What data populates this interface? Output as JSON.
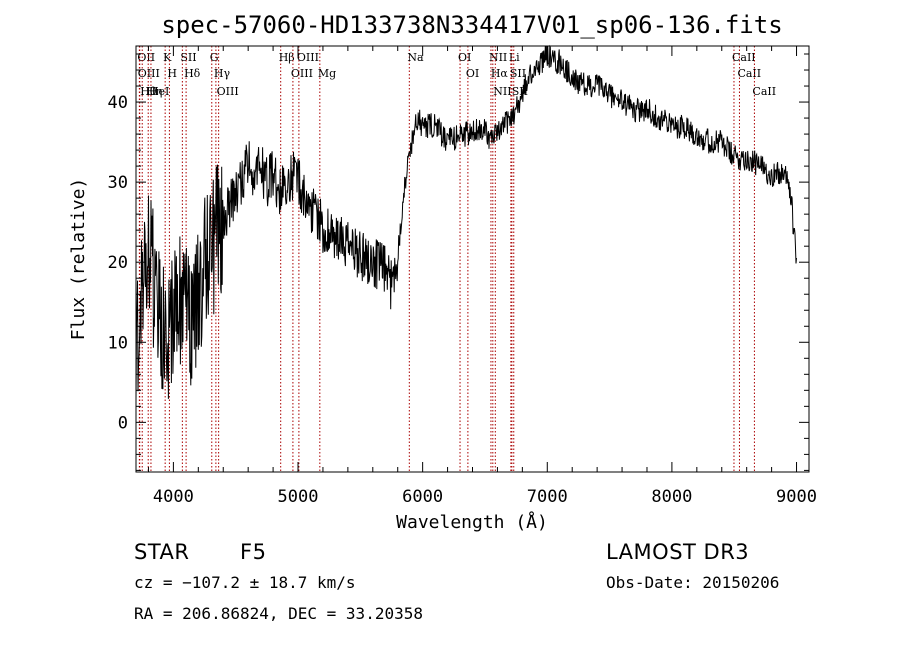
{
  "chart_data": {
    "type": "line",
    "title": "spec-57060-HD133738N334417V01_sp06-136.fits",
    "xlabel": "Wavelength (Å)",
    "ylabel": "Flux (relative)",
    "xlim": [
      3700,
      9100
    ],
    "ylim": [
      -6.2,
      47
    ],
    "xticks": [
      4000,
      5000,
      6000,
      7000,
      8000,
      9000
    ],
    "yticks": [
      0,
      10,
      20,
      30,
      40
    ],
    "grid": false,
    "line_color": "#000000",
    "marker_color": "#aa0000",
    "spectrum": {
      "name": "flux",
      "x": [
        3700,
        3750,
        3800,
        3850,
        3900,
        3950,
        4000,
        4050,
        4100,
        4150,
        4200,
        4250,
        4300,
        4350,
        4400,
        4450,
        4500,
        4550,
        4600,
        4650,
        4700,
        4750,
        4800,
        4850,
        4900,
        4950,
        5000,
        5050,
        5100,
        5150,
        5200,
        5300,
        5400,
        5500,
        5600,
        5700,
        5750,
        5800,
        5850,
        5900,
        5950,
        6000,
        6100,
        6200,
        6300,
        6400,
        6500,
        6550,
        6600,
        6650,
        6700,
        6750,
        6800,
        6850,
        6900,
        6950,
        7000,
        7050,
        7100,
        7150,
        7200,
        7300,
        7400,
        7500,
        7600,
        7700,
        7800,
        7900,
        8000,
        8100,
        8200,
        8300,
        8400,
        8500,
        8600,
        8700,
        8800,
        8900,
        8950,
        9000
      ],
      "y": [
        10,
        18,
        20,
        17,
        12,
        10,
        14,
        16,
        15,
        12,
        17,
        20,
        21,
        24,
        25,
        27,
        28,
        30,
        33,
        31,
        32,
        30,
        31,
        29,
        30,
        31,
        30,
        28,
        27,
        26,
        24,
        23,
        22,
        21,
        20,
        19,
        17,
        21,
        29,
        34,
        38,
        37,
        37,
        35,
        36,
        36,
        37,
        35,
        36,
        37,
        38,
        39,
        41,
        43,
        44,
        45,
        46,
        45,
        45,
        44,
        43,
        42,
        42,
        41,
        40,
        39,
        39,
        38,
        37,
        37,
        36,
        35,
        35,
        33,
        33,
        32,
        31,
        31,
        29,
        20
      ]
    },
    "line_markers": [
      {
        "wavelength": 3750,
        "label": "Hθ"
      },
      {
        "wavelength": 3727,
        "label": "OII"
      },
      {
        "wavelength": 3730,
        "label": "OIII"
      },
      {
        "wavelength": 3798,
        "label": "Hη"
      },
      {
        "wavelength": 3820,
        "label": "HeI"
      },
      {
        "wavelength": 3934,
        "label": "K"
      },
      {
        "wavelength": 3968,
        "label": "H"
      },
      {
        "wavelength": 4072,
        "label": "SII"
      },
      {
        "wavelength": 4102,
        "label": "Hδ"
      },
      {
        "wavelength": 4308,
        "label": "G"
      },
      {
        "wavelength": 4341,
        "label": "Hγ"
      },
      {
        "wavelength": 4363,
        "label": "OIII"
      },
      {
        "wavelength": 4861,
        "label": "Hβ"
      },
      {
        "wavelength": 4959,
        "label": "OIII"
      },
      {
        "wavelength": 5007,
        "label": "OIII"
      },
      {
        "wavelength": 5175,
        "label": "Mg"
      },
      {
        "wavelength": 5893,
        "label": "Na"
      },
      {
        "wavelength": 6300,
        "label": "OI"
      },
      {
        "wavelength": 6363,
        "label": "OI"
      },
      {
        "wavelength": 6548,
        "label": "NII"
      },
      {
        "wavelength": 6563,
        "label": "Hα"
      },
      {
        "wavelength": 6583,
        "label": "NII"
      },
      {
        "wavelength": 6708,
        "label": "Li"
      },
      {
        "wavelength": 6716,
        "label": "SII"
      },
      {
        "wavelength": 6731,
        "label": "SII"
      },
      {
        "wavelength": 8498,
        "label": "CaII"
      },
      {
        "wavelength": 8542,
        "label": "CaII"
      },
      {
        "wavelength": 8662,
        "label": "CaII"
      }
    ]
  },
  "info": {
    "object_class": "STAR",
    "subclass": "F5",
    "survey": "LAMOST DR3",
    "cz": "cz = −107.2 ± 18.7 km/s",
    "obs_date": "Obs-Date: 20150206",
    "coords": "RA = 206.86824, DEC =  33.20358"
  }
}
